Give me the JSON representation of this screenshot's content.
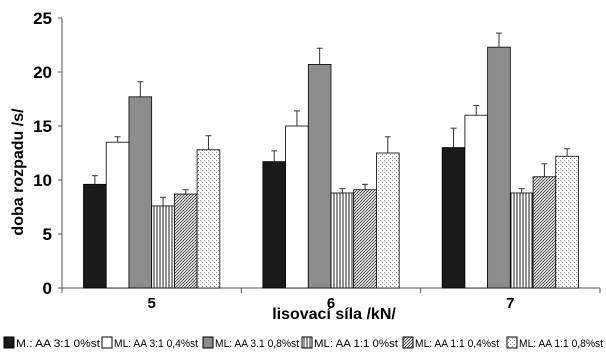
{
  "chart_data": {
    "type": "bar",
    "title": "",
    "xlabel": "lisovací síla /kN/",
    "ylabel": "doba rozpadu /s/",
    "categories": [
      "5",
      "6",
      "7"
    ],
    "ylim": [
      0,
      25
    ],
    "yticks": [
      "0",
      "5",
      "10",
      "15",
      "20",
      "25"
    ],
    "grid": false,
    "legend_position": "bottom",
    "error_bars": true,
    "series": [
      {
        "name": "M.: AA 3:1 0%st",
        "values": [
          9.6,
          11.7,
          13.0
        ],
        "errors": [
          0.8,
          1.0,
          1.8
        ],
        "fill": "#1a1a1a",
        "pattern": "solid"
      },
      {
        "name": "ML: AA 3:1 0,4%st",
        "values": [
          13.5,
          15.0,
          16.0
        ],
        "errors": [
          0.5,
          1.4,
          0.9
        ],
        "fill": "#ffffff",
        "pattern": "solid"
      },
      {
        "name": "ML: AA 3.1 0,8%st",
        "values": [
          17.7,
          20.7,
          22.3
        ],
        "errors": [
          1.4,
          1.5,
          1.3
        ],
        "fill": "#8c8c8c",
        "pattern": "solid"
      },
      {
        "name": "ML: AA 1:1 0%st",
        "values": [
          7.6,
          8.8,
          8.8
        ],
        "errors": [
          0.8,
          0.4,
          0.4
        ],
        "fill": "#ffffff",
        "pattern": "vertical"
      },
      {
        "name": "ML: AA 1:1 0,4%st",
        "values": [
          8.7,
          9.1,
          10.3
        ],
        "errors": [
          0.4,
          0.5,
          1.2
        ],
        "fill": "#e0e0e0",
        "pattern": "dense"
      },
      {
        "name": "ML: AA 1:1 0,8%st",
        "values": [
          12.8,
          12.5,
          12.2
        ],
        "errors": [
          1.3,
          1.5,
          0.7
        ],
        "fill": "#ffffff",
        "pattern": "dots"
      }
    ]
  }
}
